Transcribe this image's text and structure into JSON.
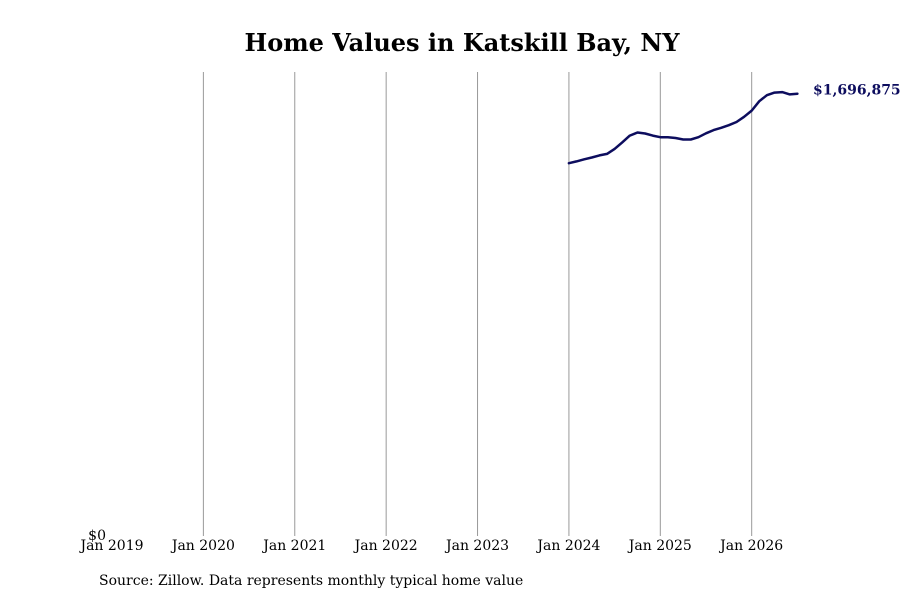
{
  "chart_data": {
    "type": "line",
    "title": "Home Values in Katskill Bay, NY",
    "xlabel": "",
    "ylabel": "",
    "x_ticks": [
      "Jan 2019",
      "Jan 2020",
      "Jan 2021",
      "Jan 2022",
      "Jan 2023",
      "Jan 2024",
      "Jan 2025",
      "Jan 2026"
    ],
    "x_range": [
      "2019-01",
      "2026-08"
    ],
    "y_ticks": [
      "$0"
    ],
    "ylim": [
      0,
      1780000
    ],
    "grid": "vertical",
    "line_color": "#0d0d5e",
    "grid_color": "#999999",
    "series": [
      {
        "points": [
          [
            "2024-01",
            1430000
          ],
          [
            "2024-02",
            1437000
          ],
          [
            "2024-03",
            1445000
          ],
          [
            "2024-04",
            1452000
          ],
          [
            "2024-05",
            1460000
          ],
          [
            "2024-06",
            1466000
          ],
          [
            "2024-07",
            1485000
          ],
          [
            "2024-08",
            1510000
          ],
          [
            "2024-09",
            1536000
          ],
          [
            "2024-10",
            1548000
          ],
          [
            "2024-11",
            1544000
          ],
          [
            "2024-12",
            1536000
          ],
          [
            "2025-01",
            1530000
          ],
          [
            "2025-02",
            1530000
          ],
          [
            "2025-03",
            1527000
          ],
          [
            "2025-04",
            1521000
          ],
          [
            "2025-05",
            1521000
          ],
          [
            "2025-06",
            1530000
          ],
          [
            "2025-07",
            1545000
          ],
          [
            "2025-08",
            1557000
          ],
          [
            "2025-09",
            1566000
          ],
          [
            "2025-10",
            1576000
          ],
          [
            "2025-11",
            1588000
          ],
          [
            "2025-12",
            1608000
          ],
          [
            "2026-01",
            1632000
          ],
          [
            "2026-02",
            1668000
          ],
          [
            "2026-03",
            1691000
          ],
          [
            "2026-04",
            1701000
          ],
          [
            "2026-05",
            1703000
          ],
          [
            "2026-06",
            1694000
          ],
          [
            "2026-07",
            1696875
          ]
        ]
      }
    ],
    "end_label": "$1,696,875"
  },
  "source": "Source: Zillow. Data represents monthly typical home value"
}
